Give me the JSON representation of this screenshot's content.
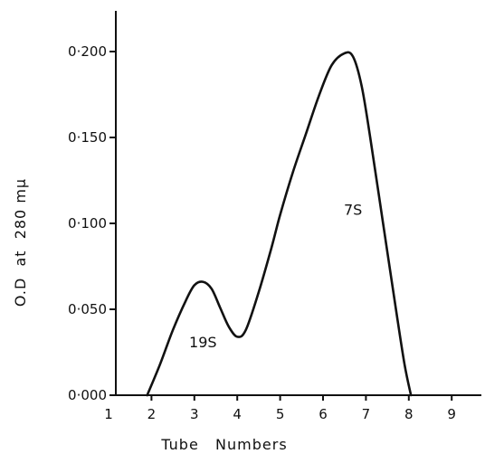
{
  "chart_data": {
    "type": "line",
    "title": "",
    "xlabel": "Tube   Numbers",
    "ylabel": "O.D  at  280 mμ",
    "xlim": [
      1,
      9.6
    ],
    "ylim": [
      0,
      0.2
    ],
    "x_ticks": [
      1,
      2,
      3,
      4,
      5,
      6,
      7,
      8,
      9
    ],
    "x_tick_labels": [
      "1",
      "2",
      "3",
      "4",
      "5",
      "6",
      "7",
      "8",
      "9"
    ],
    "y_ticks": [
      0,
      0.05,
      0.1,
      0.15,
      0.2
    ],
    "y_tick_labels": [
      "0·000",
      "0·050",
      "0·100",
      "0·150",
      "0·200"
    ],
    "grid": false,
    "series": [
      {
        "x": [
          1.9,
          2.2,
          2.5,
          2.8,
          3.0,
          3.2,
          3.4,
          3.6,
          3.8,
          4.0,
          4.2,
          4.5,
          4.8,
          5.0,
          5.3,
          5.6,
          5.9,
          6.2,
          6.5,
          6.7,
          6.9,
          7.1,
          7.4,
          7.7,
          7.9,
          8.05
        ],
        "y": [
          0.0,
          0.018,
          0.038,
          0.055,
          0.064,
          0.066,
          0.062,
          0.051,
          0.04,
          0.034,
          0.038,
          0.06,
          0.086,
          0.105,
          0.13,
          0.152,
          0.174,
          0.192,
          0.199,
          0.197,
          0.18,
          0.15,
          0.1,
          0.05,
          0.018,
          0.0
        ]
      }
    ],
    "annotations": [
      {
        "text": "19S",
        "x": 3.2,
        "y": 0.028
      },
      {
        "text": "7S",
        "x": 6.7,
        "y": 0.105
      }
    ]
  }
}
